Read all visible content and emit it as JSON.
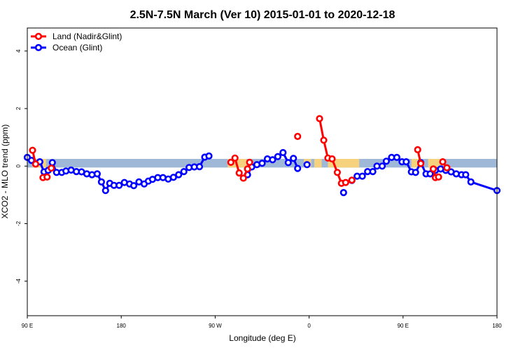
{
  "chart_data": {
    "type": "line",
    "title": "2.5N-7.5N March (Ver 10)   2015-01-01 to 2020-12-18",
    "xlabel": "Longitude (deg E)",
    "ylabel": "XCO2 - MLO trend (ppm)",
    "x_ticks": [
      {
        "value": 90,
        "label": "90 E"
      },
      {
        "value": 180,
        "label": "180"
      },
      {
        "value": 270,
        "label": "90 W"
      },
      {
        "value": 360,
        "label": "0"
      },
      {
        "value": 450,
        "label": "90 E"
      },
      {
        "value": 540,
        "label": "180"
      }
    ],
    "y_ticks": [
      -4,
      -2,
      0,
      2,
      4
    ],
    "xlim": [
      90,
      540
    ],
    "ylim": [
      -5.2,
      4.8
    ],
    "grid": false,
    "legend_position": "top-left",
    "band": {
      "lower": -0.05,
      "upper": 0.25,
      "color": "#9fb8d8"
    },
    "land_mask": [
      {
        "from": 95,
        "to": 108
      },
      {
        "from": 282,
        "to": 300
      },
      {
        "from": 355,
        "to": 362
      },
      {
        "from": 365,
        "to": 372
      },
      {
        "from": 378,
        "to": 408
      },
      {
        "from": 458,
        "to": 466
      },
      {
        "from": 474,
        "to": 486
      }
    ],
    "land_mask_color": "#f6d27f",
    "series": [
      {
        "name": "Land (Nadir&Glint)",
        "color": "#ff0000",
        "segments": [
          [
            [
              95,
              0.55
            ],
            [
              98,
              0.07
            ]
          ],
          [
            [
              113,
              -0.07
            ]
          ],
          [
            [
              105,
              -0.4
            ],
            [
              109,
              -0.38
            ]
          ],
          [
            [
              285,
              0.13
            ],
            [
              289,
              0.28
            ],
            [
              293,
              -0.24
            ],
            [
              297,
              -0.42
            ],
            [
              301,
              -0.1
            ],
            [
              303,
              0.13
            ]
          ],
          [
            [
              349,
              1.03
            ]
          ],
          [
            [
              370,
              1.65
            ],
            [
              374,
              0.9
            ],
            [
              378,
              0.28
            ],
            [
              382,
              0.25
            ],
            [
              387,
              -0.22
            ],
            [
              391,
              -0.6
            ],
            [
              395,
              -0.57
            ],
            [
              401,
              -0.49
            ]
          ],
          [
            [
              464,
              0.57
            ],
            [
              467,
              0.09
            ]
          ],
          [
            [
              479,
              -0.1
            ],
            [
              481,
              -0.4
            ],
            [
              484,
              -0.38
            ]
          ],
          [
            [
              488,
              0.15
            ],
            [
              492,
              -0.06
            ]
          ]
        ]
      },
      {
        "name": "Ocean (Glint)",
        "color": "#0000ff",
        "segments": [
          [
            [
              90,
              0.3
            ],
            [
              94,
              0.2
            ],
            [
              98,
              0.09
            ],
            [
              102,
              0.15
            ],
            [
              106,
              -0.2
            ],
            [
              110,
              -0.15
            ],
            [
              114,
              0.12
            ],
            [
              118,
              -0.22
            ],
            [
              123,
              -0.22
            ],
            [
              127,
              -0.17
            ],
            [
              132,
              -0.14
            ],
            [
              137,
              -0.19
            ],
            [
              142,
              -0.2
            ],
            [
              147,
              -0.27
            ],
            [
              152,
              -0.3
            ],
            [
              157,
              -0.27
            ],
            [
              161,
              -0.55
            ],
            [
              165,
              -0.85
            ],
            [
              169,
              -0.6
            ],
            [
              173,
              -0.67
            ],
            [
              178,
              -0.67
            ],
            [
              183,
              -0.57
            ],
            [
              188,
              -0.62
            ],
            [
              192,
              -0.68
            ],
            [
              197,
              -0.55
            ],
            [
              202,
              -0.62
            ],
            [
              206,
              -0.52
            ],
            [
              210,
              -0.46
            ],
            [
              215,
              -0.4
            ],
            [
              220,
              -0.4
            ],
            [
              225,
              -0.45
            ],
            [
              230,
              -0.39
            ],
            [
              235,
              -0.3
            ],
            [
              240,
              -0.19
            ],
            [
              245,
              -0.05
            ],
            [
              250,
              -0.03
            ],
            [
              255,
              -0.02
            ],
            [
              260,
              0.31
            ],
            [
              264,
              0.35
            ]
          ],
          [
            [
              301,
              -0.3
            ],
            [
              305,
              -0.03
            ],
            [
              310,
              0.05
            ],
            [
              315,
              0.1
            ],
            [
              320,
              0.25
            ],
            [
              325,
              0.22
            ],
            [
              330,
              0.33
            ],
            [
              335,
              0.47
            ],
            [
              340,
              0.12
            ],
            [
              345,
              0.27
            ],
            [
              349,
              -0.08
            ]
          ],
          [
            [
              358,
              0.05
            ]
          ],
          [
            [
              393,
              -0.92
            ]
          ],
          [
            [
              401,
              -0.5
            ],
            [
              406,
              -0.35
            ],
            [
              411,
              -0.35
            ],
            [
              416,
              -0.19
            ],
            [
              421,
              -0.19
            ],
            [
              425,
              0.0
            ],
            [
              430,
              0.0
            ],
            [
              434,
              0.17
            ],
            [
              439,
              0.3
            ],
            [
              444,
              0.3
            ],
            [
              449,
              0.15
            ],
            [
              453,
              0.15
            ],
            [
              458,
              -0.2
            ],
            [
              462,
              -0.22
            ],
            [
              467,
              0.12
            ],
            [
              472,
              -0.27
            ],
            [
              476,
              -0.27
            ],
            [
              481,
              -0.15
            ],
            [
              486,
              -0.1
            ],
            [
              491,
              -0.15
            ],
            [
              496,
              -0.2
            ],
            [
              501,
              -0.27
            ],
            [
              506,
              -0.3
            ],
            [
              510,
              -0.3
            ],
            [
              515,
              -0.55
            ],
            [
              540,
              -0.85
            ]
          ]
        ]
      }
    ]
  }
}
